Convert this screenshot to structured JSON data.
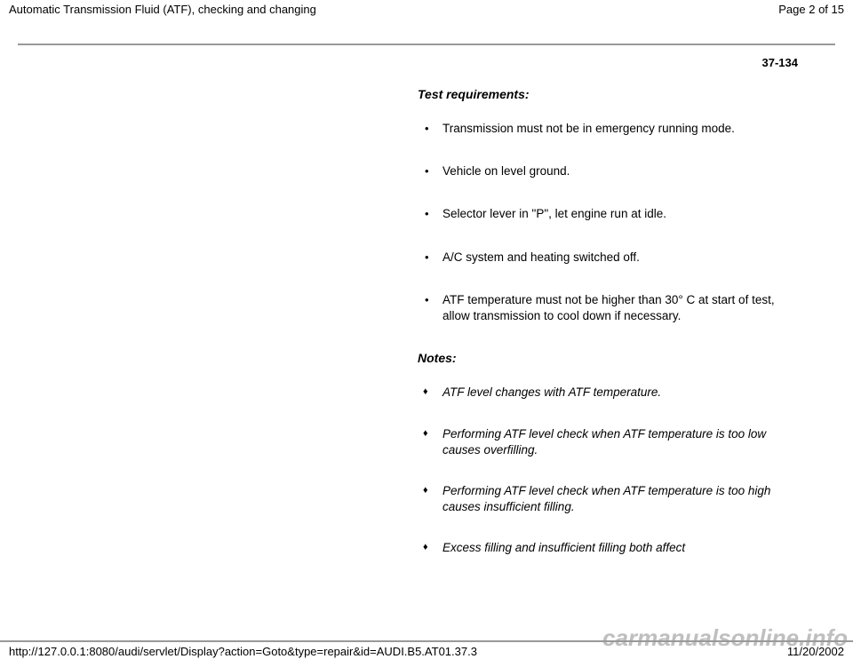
{
  "header": {
    "title": "Automatic Transmission Fluid (ATF), checking and changing",
    "page_indicator": "Page 2 of 15"
  },
  "page_number": "37-134",
  "sections": {
    "requirements_heading": "Test requirements:",
    "requirements": [
      "Transmission must not be in emergency running mode.",
      "Vehicle on level ground.",
      "Selector lever in \"P\", let engine run at idle.",
      "A/C system and heating switched off.",
      "ATF temperature must not be higher than 30° C at start of test, allow transmission to cool down if necessary."
    ],
    "notes_heading": "Notes:",
    "notes": [
      "ATF level changes with ATF temperature.",
      "Performing ATF level check when ATF temperature is too low causes overfilling.",
      "Performing ATF level check when ATF temperature is too high causes insufficient filling.",
      "Excess filling and insufficient filling both affect"
    ]
  },
  "footer": {
    "url": "http://127.0.0.1:8080/audi/servlet/Display?action=Goto&type=repair&id=AUDI.B5.AT01.37.3",
    "date": "11/20/2002"
  },
  "watermark": "carmanualsonline.info"
}
